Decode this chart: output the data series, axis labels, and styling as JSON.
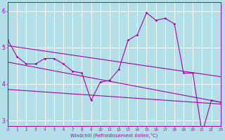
{
  "bg_color": "#b3e0e8",
  "grid_color": "#ffffff",
  "line_color": "#aa00aa",
  "xlabel": "Windchill (Refroidissement éolien,°C)",
  "ytick_labels": [
    "3",
    "4",
    "5",
    "6"
  ],
  "ytick_vals": [
    3,
    4,
    5,
    6
  ],
  "xlim": [
    0,
    23
  ],
  "ylim": [
    2.85,
    6.25
  ],
  "figsize": [
    3.2,
    2.0
  ],
  "dpi": 100,
  "line1_x": [
    0,
    1,
    2,
    3,
    4,
    5,
    6,
    7,
    8,
    9,
    10,
    11,
    12,
    13,
    14,
    15,
    16,
    17,
    18,
    19,
    20,
    21,
    22,
    23
  ],
  "line1_y": [
    5.2,
    4.75,
    4.55,
    4.55,
    4.7,
    4.7,
    4.55,
    4.35,
    4.3,
    3.55,
    4.05,
    4.1,
    4.4,
    5.2,
    5.35,
    5.95,
    5.75,
    5.8,
    5.65,
    4.3,
    4.3,
    2.65,
    3.55,
    3.5
  ],
  "line2_x": [
    0,
    23
  ],
  "line2_y": [
    5.05,
    4.2
  ],
  "line3_x": [
    0,
    23
  ],
  "line3_y": [
    3.85,
    3.45
  ],
  "line4_x": [
    0,
    23
  ],
  "line4_y": [
    4.6,
    3.5
  ]
}
